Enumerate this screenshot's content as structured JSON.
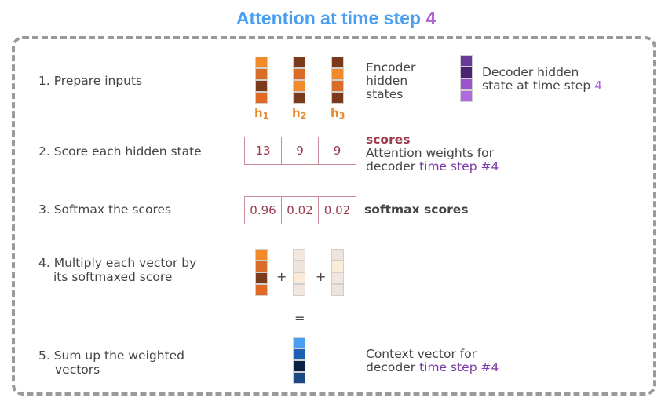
{
  "title": {
    "text": "Attention at time step ",
    "step": "4"
  },
  "steps": [
    "1.  Prepare inputs",
    "2.  Score each hidden state",
    "3.  Softmax the scores",
    "4. Multiply each vector by",
    "its softmaxed score",
    "5. Sum up the weighted",
    "vectors"
  ],
  "encoder": {
    "label": [
      "Encoder",
      "hidden",
      "states"
    ],
    "vectors": [
      {
        "name": "h",
        "sub": "1",
        "colors": [
          "#f08a2a",
          "#d96c27",
          "#7b3a1c",
          "#e06a25"
        ]
      },
      {
        "name": "h",
        "sub": "2",
        "colors": [
          "#7b3a1c",
          "#d96c27",
          "#f08a2a",
          "#7b3a1c"
        ]
      },
      {
        "name": "h",
        "sub": "3",
        "colors": [
          "#7b3a1c",
          "#f08a2a",
          "#d96c27",
          "#7b3a1c"
        ]
      }
    ]
  },
  "decoder": {
    "label_line1": "Decoder hidden",
    "label_line2": "state at time step ",
    "step": "4",
    "colors": [
      "#6a3a9a",
      "#4b2272",
      "#9a55cf",
      "#b06ae0"
    ]
  },
  "scores": {
    "title": "scores",
    "desc_line1": "Attention weights for",
    "desc_prefix": "decoder ",
    "desc_highlight": "time step #4",
    "values": [
      "13",
      "9",
      "9"
    ]
  },
  "softmax": {
    "title": "softmax scores",
    "values": [
      "0.96",
      "0.02",
      "0.02"
    ]
  },
  "weighted": {
    "v1": [
      "#f08a2a",
      "#d96c27",
      "#7b3a1c",
      "#e06a25"
    ],
    "v2": [
      "#f3e7df",
      "#efe3dc",
      "#fbead8",
      "#f3e5dd"
    ],
    "v3": [
      "#efe4dd",
      "#fbecd9",
      "#f2e6de",
      "#efe4dd"
    ],
    "plus": "+",
    "equals": "="
  },
  "context": {
    "label_line1": "Context vector for",
    "label_prefix": "decoder ",
    "label_highlight": "time step #4",
    "colors": [
      "#4a9ff0",
      "#1a5fb0",
      "#0c2244",
      "#1c4a82"
    ]
  }
}
